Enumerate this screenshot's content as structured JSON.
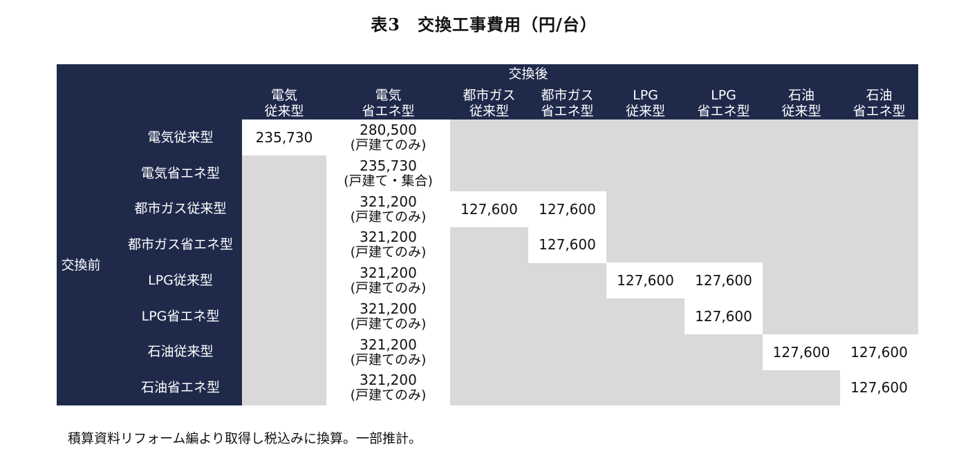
{
  "title": "表3　交換工事費用（円/台）",
  "header": {
    "after_label": "交換後",
    "before_label": "交換前",
    "columns": [
      {
        "line1": "電気",
        "line2": "従来型"
      },
      {
        "line1": "電気",
        "line2": "省エネ型"
      },
      {
        "line1": "都市ガス",
        "line2": "従来型"
      },
      {
        "line1": "都市ガス",
        "line2": "省エネ型"
      },
      {
        "line1": "LPG",
        "line2": "従来型"
      },
      {
        "line1": "LPG",
        "line2": "省エネ型"
      },
      {
        "line1": "石油",
        "line2": "従来型"
      },
      {
        "line1": "石油",
        "line2": "省エネ型"
      }
    ]
  },
  "rows": [
    {
      "label": "電気従来型",
      "cells": [
        "235,730",
        "280,500|(戸建てのみ)",
        "",
        "",
        "",
        "",
        "",
        ""
      ]
    },
    {
      "label": "電気省エネ型",
      "cells": [
        "",
        "235,730|(戸建て・集合)",
        "",
        "",
        "",
        "",
        "",
        ""
      ]
    },
    {
      "label": "都市ガス従来型",
      "cells": [
        "",
        "321,200|(戸建てのみ)",
        "127,600",
        "127,600",
        "",
        "",
        "",
        ""
      ]
    },
    {
      "label": "都市ガス省エネ型",
      "cells": [
        "",
        "321,200|(戸建てのみ)",
        "",
        "127,600",
        "",
        "",
        "",
        ""
      ]
    },
    {
      "label": "LPG従来型",
      "cells": [
        "",
        "321,200|(戸建てのみ)",
        "",
        "",
        "127,600",
        "127,600",
        "",
        ""
      ]
    },
    {
      "label": "LPG省エネ型",
      "cells": [
        "",
        "321,200|(戸建てのみ)",
        "",
        "",
        "",
        "127,600",
        "",
        ""
      ]
    },
    {
      "label": "石油従来型",
      "cells": [
        "",
        "321,200|(戸建てのみ)",
        "",
        "",
        "",
        "",
        "127,600",
        "127,600"
      ]
    },
    {
      "label": "石油省エネ型",
      "cells": [
        "",
        "321,200|(戸建てのみ)",
        "",
        "",
        "",
        "",
        "",
        "127,600"
      ]
    }
  ],
  "white_cells": [
    [
      1,
      1,
      0,
      0,
      0,
      0,
      0,
      0
    ],
    [
      0,
      1,
      0,
      0,
      0,
      0,
      0,
      0
    ],
    [
      0,
      1,
      1,
      1,
      0,
      0,
      0,
      0
    ],
    [
      0,
      1,
      0,
      1,
      0,
      0,
      0,
      0
    ],
    [
      0,
      1,
      0,
      0,
      1,
      1,
      0,
      0
    ],
    [
      0,
      1,
      0,
      0,
      0,
      1,
      0,
      0
    ],
    [
      0,
      1,
      0,
      0,
      0,
      0,
      1,
      1
    ],
    [
      0,
      1,
      0,
      0,
      0,
      0,
      0,
      1
    ]
  ],
  "note": "積算資料リフォーム編より取得し税込みに換算。一部推計。",
  "colors": {
    "header_bg": "#1f2a4b",
    "inactive_cell": "#d9d9d9",
    "active_cell": "#ffffff"
  }
}
